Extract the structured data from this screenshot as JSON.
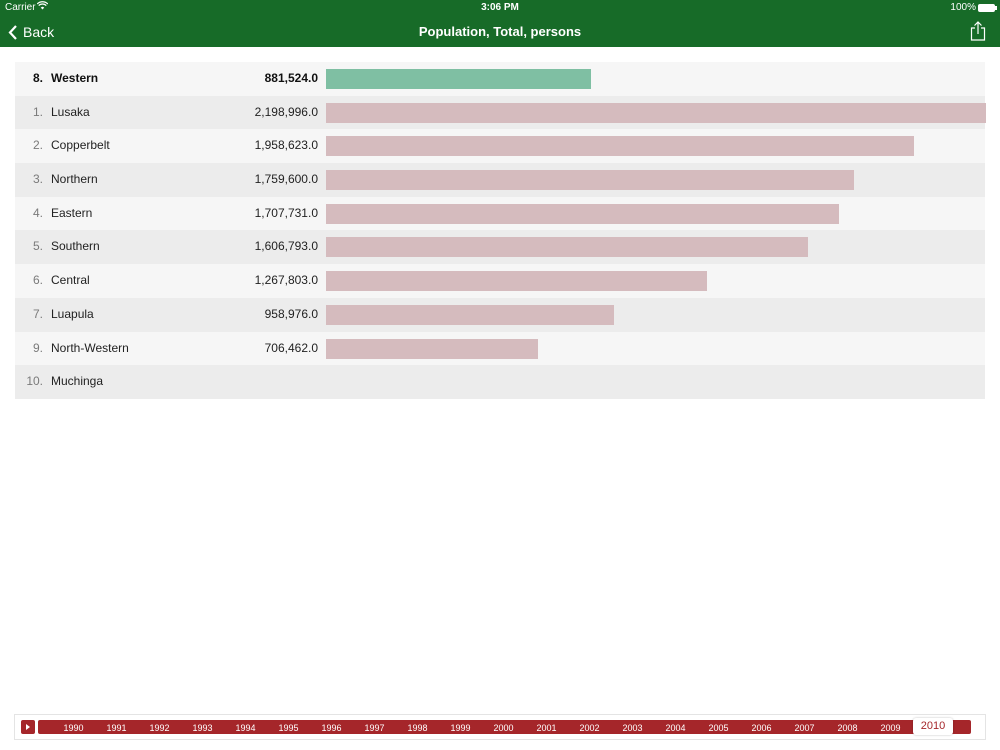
{
  "status_bar": {
    "carrier": "Carrier",
    "time": "3:06 PM",
    "battery": "100%"
  },
  "nav": {
    "back_label": "Back",
    "title": "Population, Total, persons"
  },
  "colors": {
    "header": "#176b28",
    "bar": "#d5bbbe",
    "highlight_bar": "#7fbfa3",
    "timeline": "#a5262a"
  },
  "chart_data": {
    "type": "bar",
    "title": "Population, Total, persons",
    "highlighted": "Western",
    "rows": [
      {
        "rank": "8.",
        "name": "Western",
        "value_label": "881,524.0",
        "value": 881524,
        "highlight": true
      },
      {
        "rank": "1.",
        "name": "Lusaka",
        "value_label": "2,198,996.0",
        "value": 2198996
      },
      {
        "rank": "2.",
        "name": "Copperbelt",
        "value_label": "1,958,623.0",
        "value": 1958623
      },
      {
        "rank": "3.",
        "name": "Northern",
        "value_label": "1,759,600.0",
        "value": 1759600
      },
      {
        "rank": "4.",
        "name": "Eastern",
        "value_label": "1,707,731.0",
        "value": 1707731
      },
      {
        "rank": "5.",
        "name": "Southern",
        "value_label": "1,606,793.0",
        "value": 1606793
      },
      {
        "rank": "6.",
        "name": "Central",
        "value_label": "1,267,803.0",
        "value": 1267803
      },
      {
        "rank": "7.",
        "name": "Luapula",
        "value_label": "958,976.0",
        "value": 958976
      },
      {
        "rank": "9.",
        "name": "North-Western",
        "value_label": "706,462.0",
        "value": 706462
      },
      {
        "rank": "10.",
        "name": "Muchinga",
        "value_label": "",
        "value": null
      }
    ],
    "max_value": 2198996
  },
  "timeline": {
    "years": [
      "1990",
      "1991",
      "1992",
      "1993",
      "1994",
      "1995",
      "1996",
      "1997",
      "1998",
      "1999",
      "2000",
      "2001",
      "2002",
      "2003",
      "2004",
      "2005",
      "2006",
      "2007",
      "2008",
      "2009",
      "2010"
    ],
    "selected": "2010"
  }
}
